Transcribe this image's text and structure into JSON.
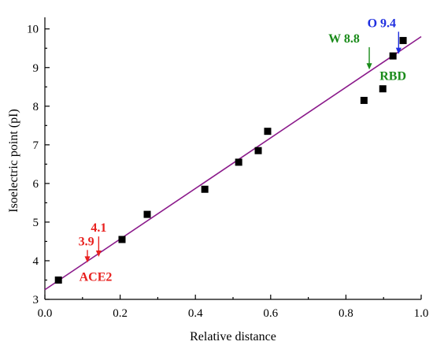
{
  "chart_data": {
    "type": "scatter",
    "xlabel": "Relative distance",
    "ylabel": "Isoelectric point (pI)",
    "xlim": [
      0.0,
      1.0
    ],
    "ylim": [
      3,
      10.3
    ],
    "x_ticks": [
      "0.0",
      "0.2",
      "0.4",
      "0.6",
      "0.8",
      "1.0"
    ],
    "y_ticks": [
      "3",
      "4",
      "5",
      "6",
      "7",
      "8",
      "9",
      "10"
    ],
    "x_tick_values": [
      0.0,
      0.2,
      0.4,
      0.6,
      0.8,
      1.0
    ],
    "y_tick_values": [
      3,
      4,
      5,
      6,
      7,
      8,
      9,
      10
    ],
    "grid": false,
    "points": [
      {
        "x": 0.036,
        "y": 3.5
      },
      {
        "x": 0.205,
        "y": 4.55
      },
      {
        "x": 0.272,
        "y": 5.2
      },
      {
        "x": 0.425,
        "y": 5.85
      },
      {
        "x": 0.515,
        "y": 6.55
      },
      {
        "x": 0.567,
        "y": 6.85
      },
      {
        "x": 0.592,
        "y": 7.35
      },
      {
        "x": 0.848,
        "y": 8.15
      },
      {
        "x": 0.898,
        "y": 8.45
      },
      {
        "x": 0.925,
        "y": 9.3
      },
      {
        "x": 0.952,
        "y": 9.7
      }
    ],
    "fit_line": {
      "x": [
        0.0,
        1.0
      ],
      "y": [
        3.25,
        9.8
      ],
      "color": "#8b1a8b"
    },
    "annotations": [
      {
        "text": "4.1",
        "x": 0.143,
        "y": 4.1,
        "color": "#e8211f",
        "label_x": 0.143,
        "label_y": 4.75
      },
      {
        "text": "3.9",
        "x": 0.113,
        "y": 3.95,
        "color": "#e8211f",
        "label_x": 0.11,
        "label_y": 4.4
      },
      {
        "text": "W 8.8",
        "x": 0.862,
        "y": 8.95,
        "color": "#1a8b1a",
        "label_x": 0.795,
        "label_y": 9.65
      },
      {
        "text": "O 9.4",
        "x": 0.94,
        "y": 9.35,
        "color": "#1f2fe0",
        "label_x": 0.895,
        "label_y": 10.05
      }
    ],
    "region_labels": [
      {
        "text": "ACE2",
        "x": 0.135,
        "y": 3.6,
        "color": "#e8211f"
      },
      {
        "text": "RBD",
        "x": 0.925,
        "y": 8.8,
        "color": "#1a8b1a"
      }
    ]
  }
}
